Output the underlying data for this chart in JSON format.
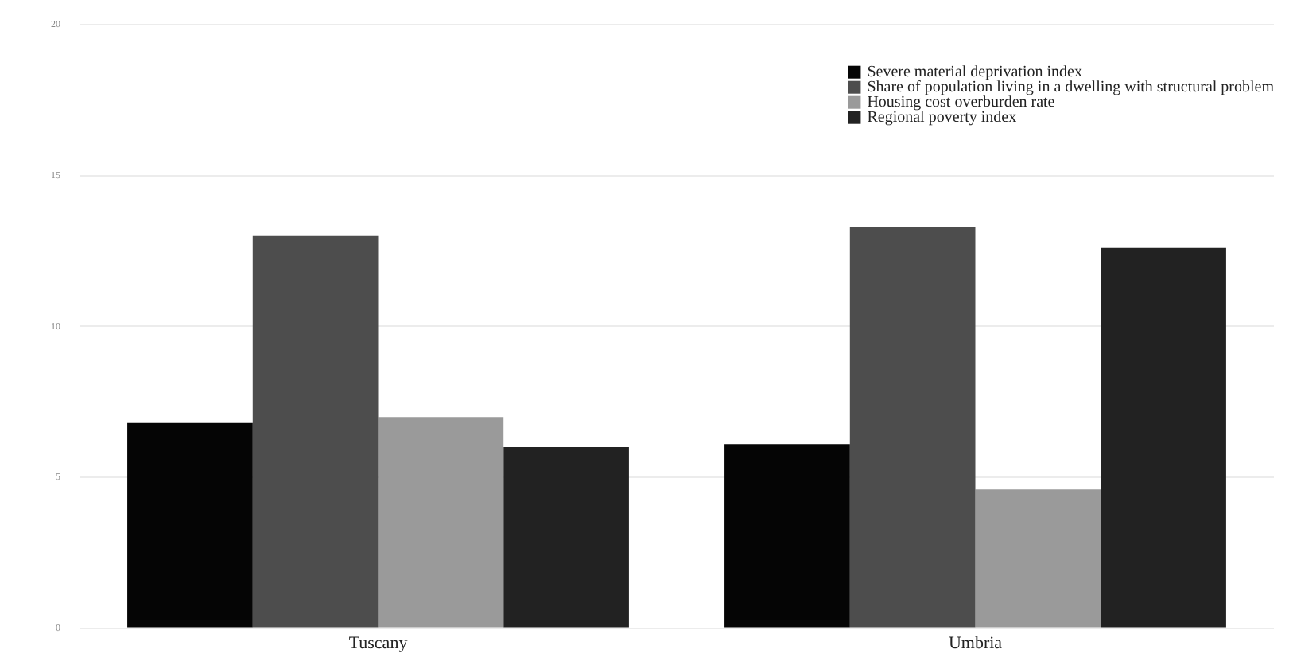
{
  "chart_data": {
    "type": "bar",
    "categories": [
      "Tuscany",
      "Umbria"
    ],
    "series": [
      {
        "name": "Severe material deprivation index",
        "color": "#050505",
        "values": [
          6.8,
          6.1
        ]
      },
      {
        "name": "Share of population living in a dwelling with structural problem",
        "color": "#4d4d4d",
        "values": [
          13.0,
          13.3
        ]
      },
      {
        "name": "Housing cost overburden rate",
        "color": "#9a9a9a",
        "values": [
          7.0,
          4.6
        ]
      },
      {
        "name": "Regional poverty index",
        "color": "#222222",
        "values": [
          6.0,
          12.6
        ]
      }
    ],
    "ylim": [
      0,
      20
    ],
    "yticks": [
      0,
      5,
      10,
      15,
      20
    ],
    "grid": "y",
    "legend": "top right"
  }
}
